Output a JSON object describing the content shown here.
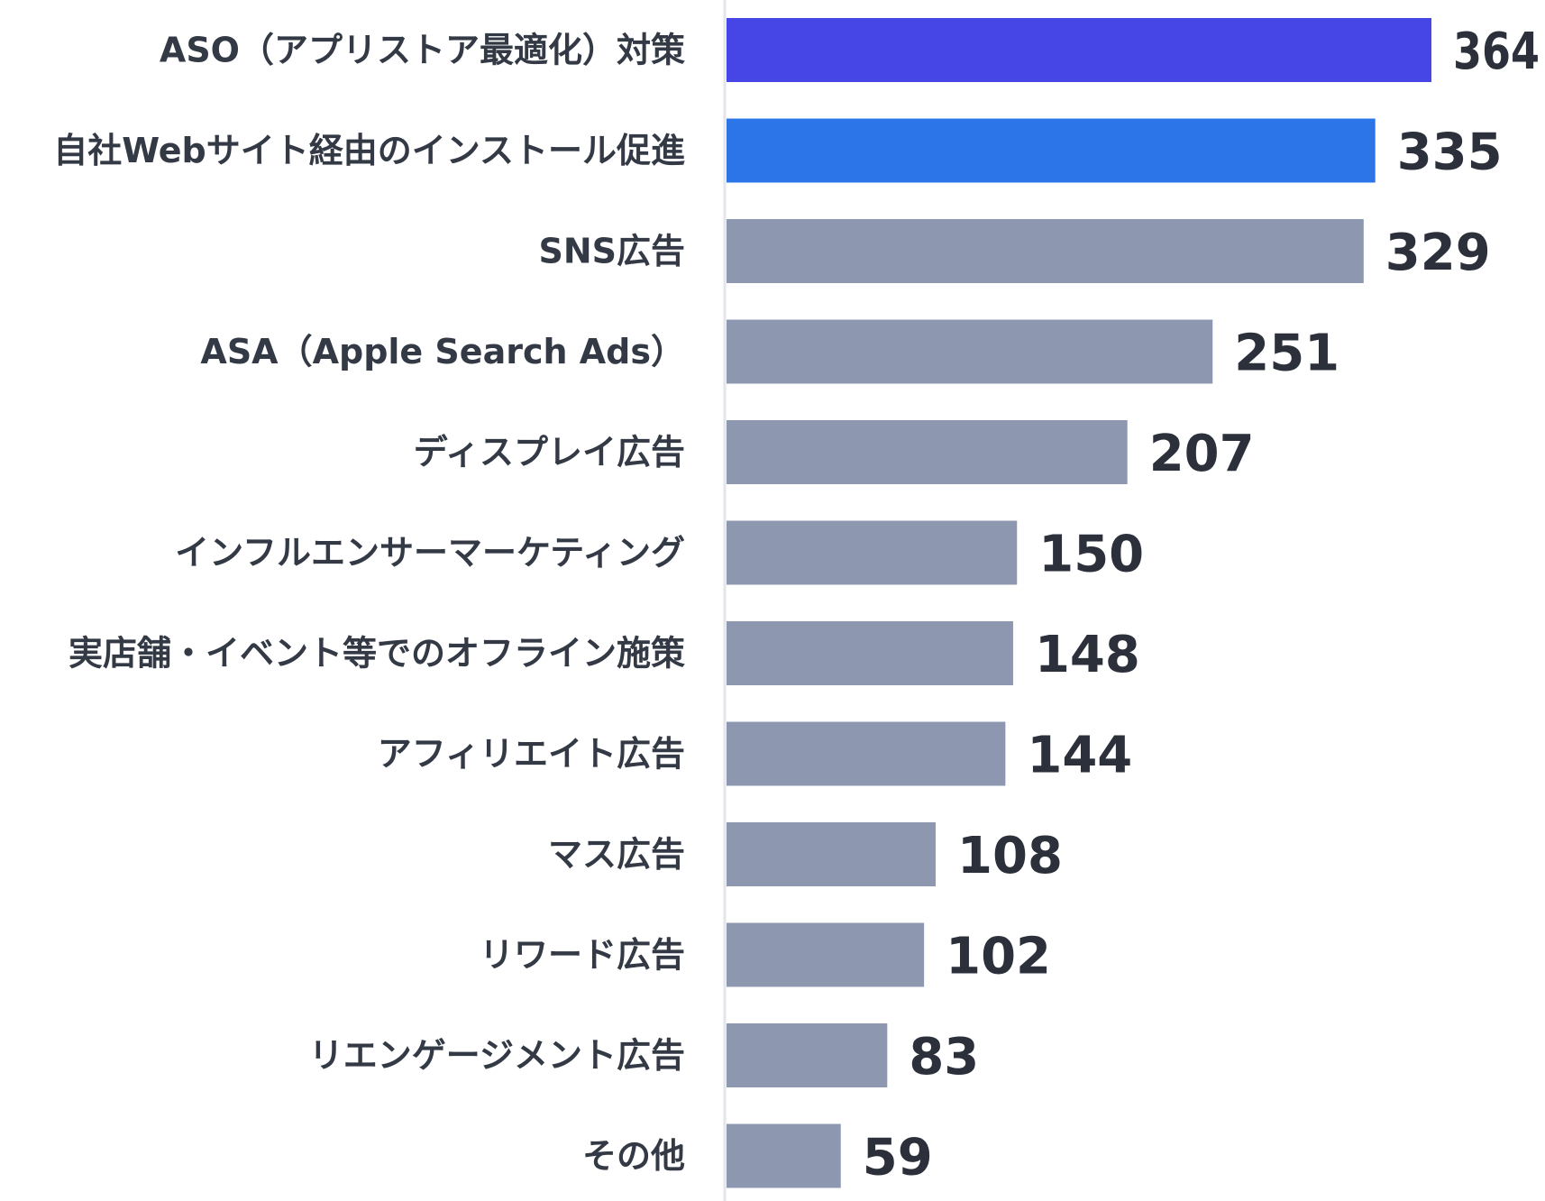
{
  "chart_data": {
    "type": "bar",
    "orientation": "horizontal",
    "title": "",
    "xlabel": "",
    "ylabel": "",
    "categories": [
      "ASO（アプリストア最適化）対策",
      "自社Webサイト経由のインストール促進",
      "SNS広告",
      "ASA（Apple Search Ads）",
      "ディスプレイ広告",
      "インフルエンサーマーケティング",
      "実店舗・イベント等でのオフライン施策",
      "アフィリエイト広告",
      "マス広告",
      "リワード広告",
      "リエンゲージメント広告",
      "その他"
    ],
    "values": [
      364,
      335,
      329,
      251,
      207,
      150,
      148,
      144,
      108,
      102,
      83,
      59
    ],
    "colors": [
      "#4646e6",
      "#2b75e8",
      "#8d98b0",
      "#8d98b0",
      "#8d98b0",
      "#8d98b0",
      "#8d98b0",
      "#8d98b0",
      "#8d98b0",
      "#8d98b0",
      "#8d98b0",
      "#8d98b0"
    ],
    "xlim": [
      0,
      364
    ],
    "grid": false,
    "legend": "none"
  }
}
